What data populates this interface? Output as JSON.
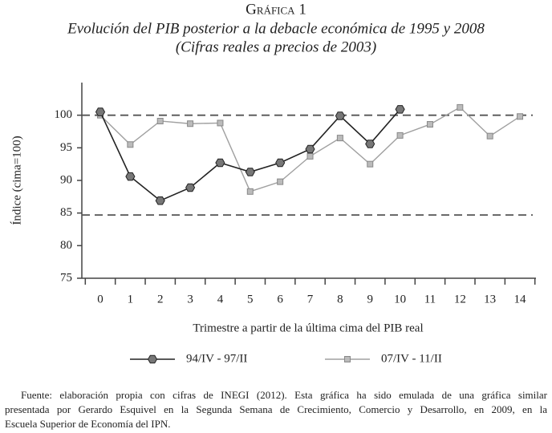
{
  "chart_data": {
    "type": "line",
    "title": "Gráfica 1",
    "subtitle": [
      "Evolución del PIB posterior a la debacle económica de 1995 y 2008",
      "(Cifras reales a precios de 2003)"
    ],
    "x_label": "Trimestre a partir de la última cima del PIB real",
    "y_label": "Índice (cima=100)",
    "categories": [
      "0",
      "1",
      "2",
      "3",
      "4",
      "5",
      "6",
      "7",
      "8",
      "9",
      "10",
      "11",
      "12",
      "13",
      "14"
    ],
    "series": [
      {
        "name": "94/IV - 97/II",
        "color": "#222222",
        "marker": "hexagon",
        "values": [
          100.5,
          90.6,
          86.9,
          88.9,
          92.7,
          91.3,
          92.7,
          94.8,
          99.9,
          95.6,
          100.9,
          null,
          null,
          null,
          null
        ]
      },
      {
        "name": "07/IV - 11/II",
        "color": "#a0a0a0",
        "marker": "square",
        "values": [
          100.0,
          95.5,
          99.1,
          98.7,
          98.8,
          88.3,
          89.8,
          93.7,
          96.5,
          92.5,
          96.9,
          98.6,
          101.2,
          96.8,
          99.8
        ]
      }
    ],
    "reference_lines": [
      100,
      84.7
    ],
    "ylim": [
      75,
      105
    ],
    "yticks": [
      75,
      80,
      85,
      90,
      95,
      100
    ],
    "footnote": [
      "Fuente: elaboración propia con cifras de INEGI (2012). Esta gráfica ha sido emulada de una gráfica similar",
      "presentada por Gerardo Esquivel en la Segunda Semana de Crecimiento, Comercio y Desarrollo, en 2009, en la",
      "Escuela Superior de Economía del IPN."
    ]
  }
}
